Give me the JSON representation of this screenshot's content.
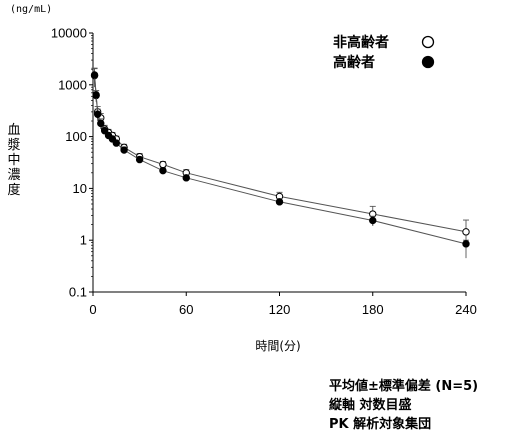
{
  "chart_data": {
    "type": "line",
    "title": "",
    "unit_label": "(ng/mL)",
    "ylabel": "血漿中濃度",
    "xlabel": "時間(分)",
    "y_scale": "log",
    "ylim": [
      0.1,
      10000
    ],
    "y_ticks": [
      "10000",
      "1000",
      "100",
      "10",
      "1",
      "0.1"
    ],
    "y_tick_values": [
      10000,
      1000,
      100,
      10,
      1,
      0.1
    ],
    "xlim": [
      0,
      240
    ],
    "x_ticks": [
      "0",
      "60",
      "120",
      "180",
      "240"
    ],
    "x_tick_values": [
      0,
      60,
      120,
      180,
      240
    ],
    "grid": false,
    "legend_position": "top-right",
    "series": [
      {
        "name": "非高齢者",
        "marker": "open-circle",
        "color": "#000000",
        "x": [
          1,
          2,
          3,
          5,
          7.5,
          10,
          12.5,
          15,
          20,
          30,
          45,
          60,
          120,
          180,
          240
        ],
        "y": [
          1500,
          620,
          300,
          230,
          140,
          120,
          105,
          90,
          62,
          41,
          29,
          20,
          7.0,
          3.2,
          1.45
        ],
        "err": [
          600,
          150,
          80,
          50,
          25,
          18,
          15,
          12,
          9,
          6,
          4,
          3,
          1.4,
          1.3,
          1.0
        ]
      },
      {
        "name": "高齢者",
        "marker": "filled-circle",
        "color": "#000000",
        "x": [
          1,
          2,
          3,
          5,
          7.5,
          10,
          12.5,
          15,
          20,
          30,
          45,
          60,
          120,
          180,
          240
        ],
        "y": [
          1550,
          640,
          270,
          180,
          130,
          105,
          90,
          75,
          55,
          36,
          22,
          16,
          5.5,
          2.4,
          0.85
        ],
        "err": [
          500,
          130,
          70,
          40,
          20,
          15,
          12,
          10,
          8,
          5,
          3,
          2,
          0.8,
          0.5,
          0.15
        ]
      }
    ]
  },
  "notes": [
    "平均値±標準偏差 (N=5)",
    "縦軸 対数目盛",
    "PK 解析対象集団"
  ]
}
